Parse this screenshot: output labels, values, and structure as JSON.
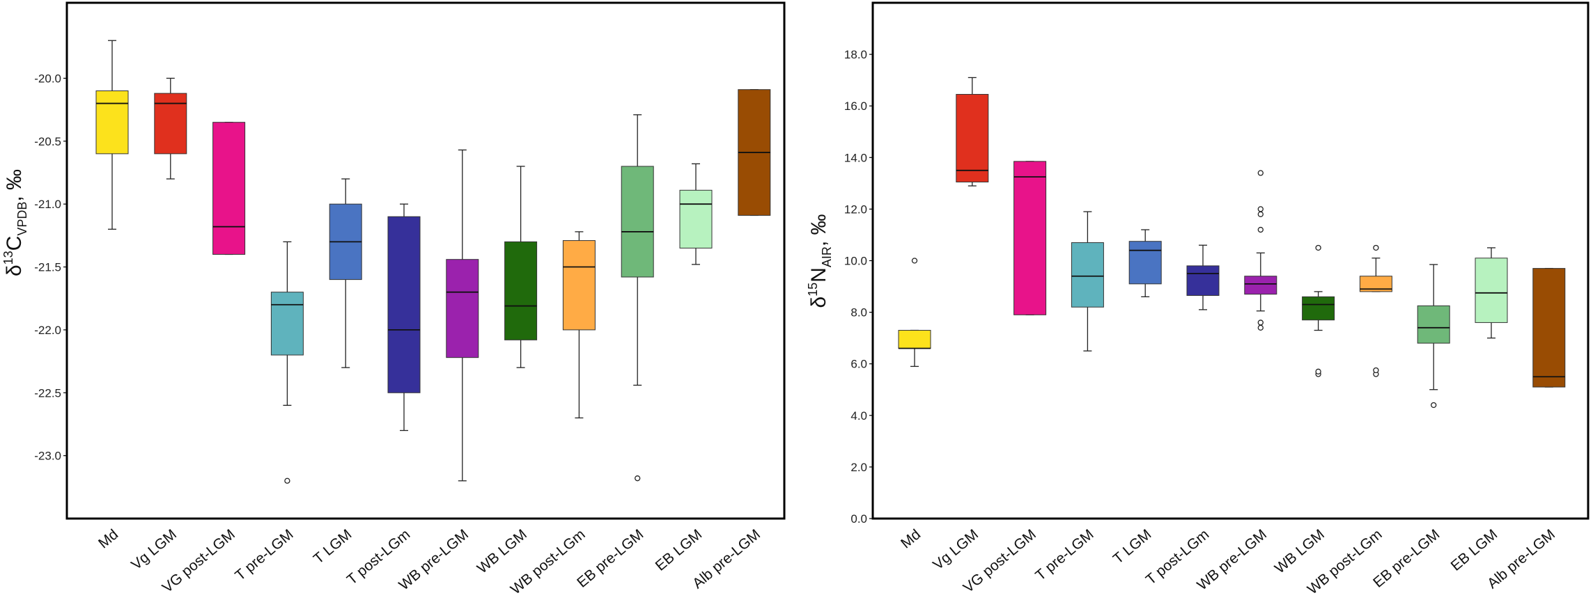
{
  "chart_data": [
    {
      "type": "box",
      "ylabel": {
        "base": "δ",
        "sup": "13",
        "main": "C",
        "sub": "VPDB",
        "suffix": ", ‰"
      },
      "ylim": [
        -23.5,
        -19.4
      ],
      "yticks": [
        -23.0,
        -22.5,
        -22.0,
        -21.5,
        -21.0,
        -20.5,
        -20.0
      ],
      "tick_labels": [
        "-23.0",
        "-22.5",
        "-22.0",
        "-21.5",
        "-21.0",
        "-20.5",
        "-20.0"
      ],
      "categories": [
        "Md",
        "Vg LGM",
        "VG post-LGM",
        "T pre-LGM",
        "T LGM",
        "T post-LGm",
        "WB pre-LGM",
        "WB LGM",
        "WB post-LGm",
        "EB pre-LGM",
        "EB LGM",
        "Alb pre-LGM"
      ],
      "colors": [
        "#fce21c",
        "#e0301e",
        "#e8138a",
        "#5fb3bd",
        "#4a74c2",
        "#36309a",
        "#9b22ad",
        "#206a0c",
        "#ffab45",
        "#6fb879",
        "#b7f2bf",
        "#994c03"
      ],
      "boxes": [
        {
          "min": -21.2,
          "q1": -20.6,
          "median": -20.2,
          "q3": -20.1,
          "max": -19.7,
          "outliers": []
        },
        {
          "min": -20.8,
          "q1": -20.6,
          "median": -20.2,
          "q3": -20.12,
          "max": -20.0,
          "outliers": []
        },
        {
          "min": -21.4,
          "q1": -21.4,
          "median": -21.18,
          "q3": -20.35,
          "max": -20.35,
          "outliers": []
        },
        {
          "min": -22.6,
          "q1": -22.2,
          "median": -21.8,
          "q3": -21.7,
          "max": -21.3,
          "outliers": [
            -23.2
          ]
        },
        {
          "min": -22.3,
          "q1": -21.6,
          "median": -21.3,
          "q3": -21.0,
          "max": -20.8,
          "outliers": []
        },
        {
          "min": -22.8,
          "q1": -22.5,
          "median": -22.0,
          "q3": -21.1,
          "max": -21.0,
          "outliers": []
        },
        {
          "min": -23.2,
          "q1": -22.22,
          "median": -21.7,
          "q3": -21.44,
          "max": -20.57,
          "outliers": []
        },
        {
          "min": -22.3,
          "q1": -22.08,
          "median": -21.81,
          "q3": -21.3,
          "max": -20.7,
          "outliers": []
        },
        {
          "min": -22.7,
          "q1": -22.0,
          "median": -21.5,
          "q3": -21.29,
          "max": -21.22,
          "outliers": []
        },
        {
          "min": -22.44,
          "q1": -21.58,
          "median": -21.22,
          "q3": -20.7,
          "max": -20.29,
          "outliers": [
            -23.18
          ]
        },
        {
          "min": -21.48,
          "q1": -21.35,
          "median": -21.0,
          "q3": -20.89,
          "max": -20.68,
          "outliers": []
        },
        {
          "min": -21.09,
          "q1": -21.09,
          "median": -20.59,
          "q3": -20.09,
          "max": -20.09,
          "outliers": []
        }
      ]
    },
    {
      "type": "box",
      "ylabel": {
        "base": "δ",
        "sup": "15",
        "main": "N",
        "sub": "AIR",
        "suffix": ", ‰"
      },
      "ylim": [
        0.0,
        20.0
      ],
      "yticks": [
        0.0,
        2.0,
        4.0,
        6.0,
        8.0,
        10.0,
        12.0,
        14.0,
        16.0,
        18.0
      ],
      "tick_labels": [
        "0.0",
        "2.0",
        "4.0",
        "6.0",
        "8.0",
        "10.0",
        "12.0",
        "14.0",
        "16.0",
        "18.0"
      ],
      "categories": [
        "Md",
        "Vg LGM",
        "VG post-LGM",
        "T pre-LGM",
        "T LGM",
        "T post-LGm",
        "WB pre-LGM",
        "WB LGM",
        "WB post-LGm",
        "EB pre-LGM",
        "EB LGM",
        "Alb pre-LGM"
      ],
      "colors": [
        "#fce21c",
        "#e0301e",
        "#e8138a",
        "#5fb3bd",
        "#4a74c2",
        "#36309a",
        "#9b22ad",
        "#206a0c",
        "#ffab45",
        "#6fb879",
        "#b7f2bf",
        "#994c03"
      ],
      "boxes": [
        {
          "min": 5.9,
          "q1": 6.6,
          "median": 6.6,
          "q3": 7.3,
          "max": 7.3,
          "outliers": [
            10.0
          ]
        },
        {
          "min": 12.9,
          "q1": 13.05,
          "median": 13.5,
          "q3": 16.45,
          "max": 17.1,
          "outliers": []
        },
        {
          "min": 7.9,
          "q1": 7.9,
          "median": 13.25,
          "q3": 13.85,
          "max": 13.85,
          "outliers": []
        },
        {
          "min": 6.5,
          "q1": 8.2,
          "median": 9.4,
          "q3": 10.7,
          "max": 11.9,
          "outliers": []
        },
        {
          "min": 8.6,
          "q1": 9.1,
          "median": 10.4,
          "q3": 10.75,
          "max": 11.2,
          "outliers": []
        },
        {
          "min": 8.1,
          "q1": 8.65,
          "median": 9.5,
          "q3": 9.8,
          "max": 10.6,
          "outliers": []
        },
        {
          "min": 8.05,
          "q1": 8.7,
          "median": 9.1,
          "q3": 9.4,
          "max": 10.3,
          "outliers": [
            7.4,
            7.6,
            11.2,
            11.8,
            12.0,
            13.4
          ]
        },
        {
          "min": 7.3,
          "q1": 7.7,
          "median": 8.3,
          "q3": 8.6,
          "max": 8.8,
          "outliers": [
            5.6,
            5.7,
            10.5
          ]
        },
        {
          "min": 8.8,
          "q1": 8.8,
          "median": 8.9,
          "q3": 9.4,
          "max": 10.1,
          "outliers": [
            5.6,
            5.75,
            10.5
          ]
        },
        {
          "min": 5.0,
          "q1": 6.8,
          "median": 7.4,
          "q3": 8.25,
          "max": 9.85,
          "outliers": [
            4.4
          ]
        },
        {
          "min": 7.0,
          "q1": 7.6,
          "median": 8.75,
          "q3": 10.1,
          "max": 10.5,
          "outliers": []
        },
        {
          "min": 5.1,
          "q1": 5.1,
          "median": 5.5,
          "q3": 9.7,
          "max": 9.7,
          "outliers": []
        }
      ]
    }
  ]
}
